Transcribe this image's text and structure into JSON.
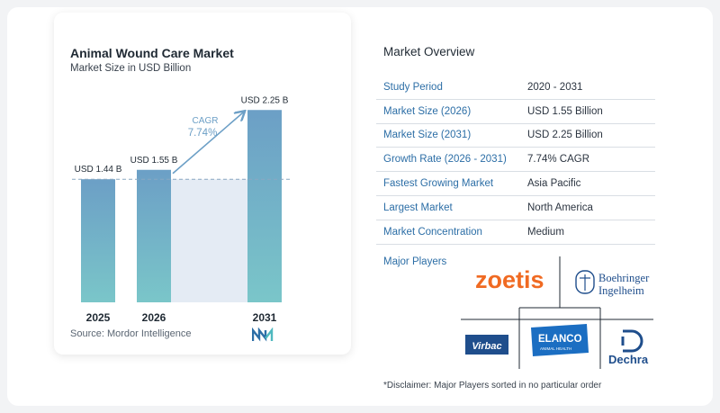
{
  "chart_data": {
    "type": "bar",
    "title": "Animal Wound Care Market",
    "subtitle": "Market Size in USD Billion",
    "categories": [
      "2025",
      "2026",
      "2031"
    ],
    "values": [
      1.44,
      1.55,
      2.25
    ],
    "value_labels": [
      "USD 1.44 B",
      "USD 1.55 B",
      "USD 2.25 B"
    ],
    "cagr_label": "CAGR",
    "cagr_value": "7.74%",
    "ylim": [
      0,
      2.4
    ],
    "grid": false,
    "colors": {
      "bar_top": "#6c9fc6",
      "bar_bottom": "#7ac6c9",
      "shade": "#e4ebf4",
      "arrow": "#6c9fc6",
      "dash": "#8aa8c2"
    }
  },
  "source": "Source:  Mordor Intelligence",
  "overview": {
    "title": "Market Overview",
    "rows": [
      {
        "key": "Study Period",
        "value": "2020 - 2031"
      },
      {
        "key": "Market Size (2026)",
        "value": "USD 1.55 Billion"
      },
      {
        "key": "Market Size (2031)",
        "value": "USD 2.25 Billion"
      },
      {
        "key": "Growth Rate (2026 - 2031)",
        "value": "7.74% CAGR"
      },
      {
        "key": "Fastest Growing Market",
        "value": "Asia Pacific"
      },
      {
        "key": "Largest Market",
        "value": "North America"
      },
      {
        "key": "Market Concentration",
        "value": "Medium"
      }
    ]
  },
  "players": {
    "title": "Major Players",
    "logos": {
      "zoetis": "zoetis",
      "boehringer_1": "Boehringer",
      "boehringer_2": "Ingelheim",
      "virbac": "Virbac",
      "elanco": "ELANCO",
      "elanco_sub": "ANIMAL HEALTH",
      "dechra": "Dechra"
    }
  },
  "disclaimer": "*Disclaimer: Major Players sorted in no particular order"
}
